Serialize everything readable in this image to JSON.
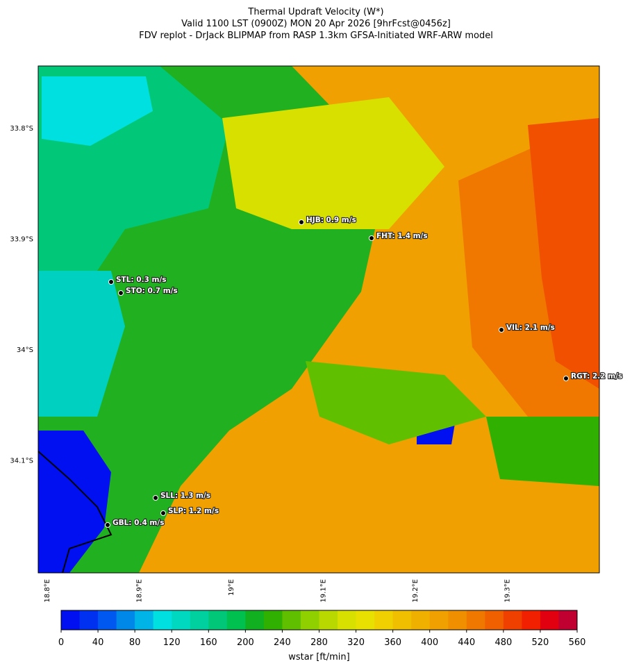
{
  "title": [
    "Thermal Updraft Velocity (W*)",
    "Valid 1100 LST (0900Z) MON 20 Apr 2026 [9hrFcst@0456z]",
    "FDV replot - DrJack BLIPMAP from RASP 1.3km GFSA-Initiated WRF-ARW model"
  ],
  "lat_labels": [
    "33.8°S",
    "33.9°S",
    "34°S",
    "34.1°S"
  ],
  "lon_labels": [
    "18.8°E",
    "18.9°E",
    "19°E",
    "19.1°E",
    "19.2°E",
    "19.3°E"
  ],
  "stations": [
    "HJB: 0.9 m/s",
    "FHT: 1.4 m/s",
    "STL: 0.3 m/s",
    "STO: 0.7 m/s",
    "VIL: 2.1 m/s",
    "RGT: 2.2 m/s",
    "SLL: 1.3 m/s",
    "SLP: 1.2 m/s",
    "GBL: 0.4 m/s"
  ],
  "colorbar": {
    "label": "wstar [ft/min]",
    "lim": [
      0,
      560
    ],
    "ticks": [
      0,
      40,
      80,
      120,
      160,
      200,
      240,
      280,
      320,
      360,
      400,
      440,
      480,
      520,
      560
    ],
    "colors": [
      "#0010f0",
      "#0030f0",
      "#0058f0",
      "#0088e8",
      "#00b4e8",
      "#00e0e0",
      "#00d8c0",
      "#00d0a0",
      "#00c878",
      "#00c050",
      "#10b020",
      "#30b000",
      "#60c000",
      "#90d000",
      "#b8d800",
      "#d8e000",
      "#e8e000",
      "#f0d000",
      "#f0c000",
      "#f0b000",
      "#f0a000",
      "#f09000",
      "#f07800",
      "#f06000",
      "#f04000",
      "#f02000",
      "#e00010",
      "#c00030"
    ]
  }
}
